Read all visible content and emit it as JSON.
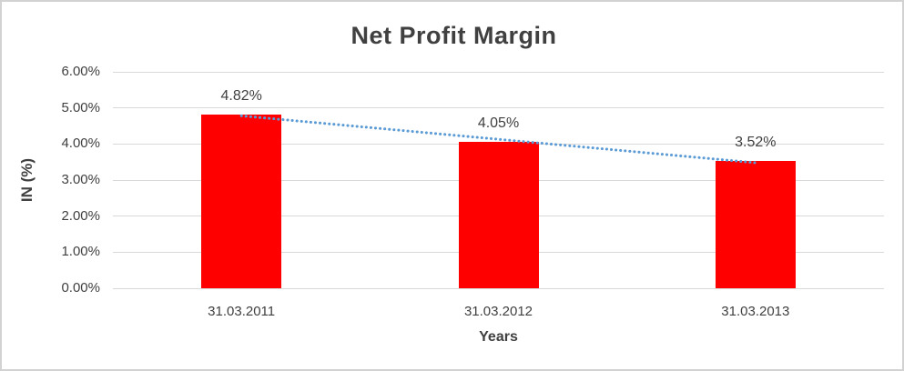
{
  "chart_data": {
    "type": "bar",
    "title": "Net Profit Margin",
    "categories": [
      "31.03.2011",
      "31.03.2012",
      "31.03.2013"
    ],
    "values": [
      4.82,
      4.05,
      3.52
    ],
    "data_labels": [
      "4.82%",
      "4.05%",
      "3.52%"
    ],
    "xlabel": "Years",
    "ylabel": "IN (%)",
    "ylim": [
      0,
      6
    ],
    "ytick_step": 1,
    "ytick_labels": [
      "0.00%",
      "1.00%",
      "2.00%",
      "3.00%",
      "4.00%",
      "5.00%",
      "6.00%"
    ],
    "grid": true,
    "legend": false,
    "bar_color": "#ff0000",
    "gridline_color": "#d9d9d9",
    "text_color": "#404040",
    "trendline": {
      "type": "linear",
      "series": "Net Profit Margin",
      "style": "dotted",
      "color": "#5b9bd5",
      "fitted_values": [
        4.78,
        4.13,
        3.48
      ]
    }
  }
}
